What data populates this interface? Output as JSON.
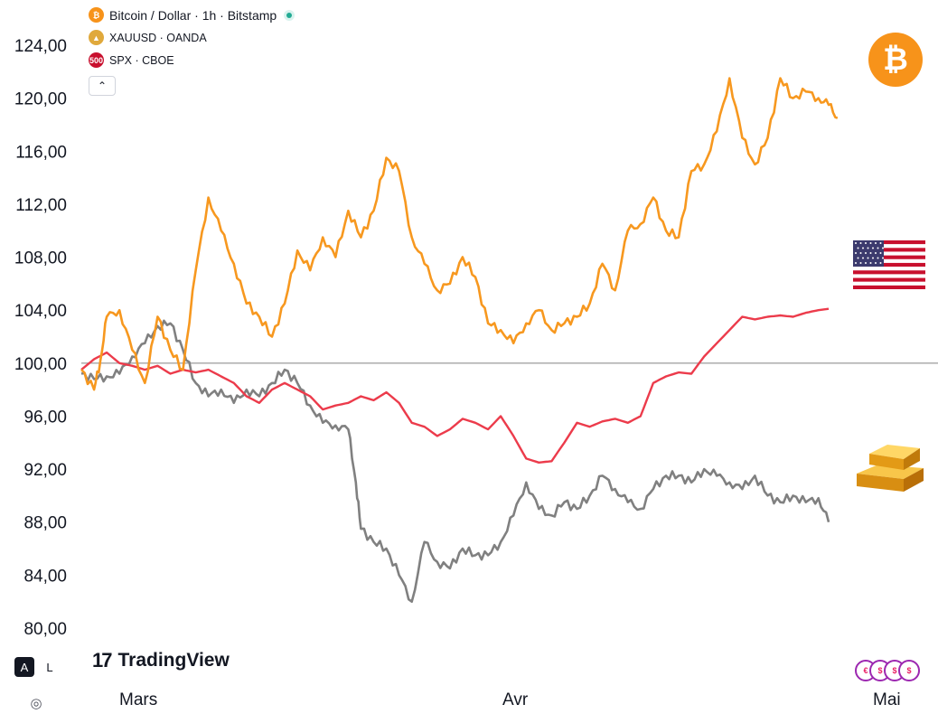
{
  "legend": {
    "items": [
      {
        "label": "Bitcoin / Dollar · 1h · Bitstamp",
        "color": "#f7931a",
        "badge": "₿"
      },
      {
        "label": "XAUUSD · OANDA",
        "color": "#e0a93c",
        "badge": "▲"
      },
      {
        "label": "SPX · CBOE",
        "color": "#c8102e",
        "badge": "500"
      }
    ],
    "collapse_icon": "chevron-up-icon"
  },
  "brand": {
    "logo": "17",
    "name": "TradingView"
  },
  "scale_buttons": {
    "auto": "A",
    "log": "L"
  },
  "colors": {
    "btc": "#f7981f",
    "spx": "#ec3b4b",
    "gold": "#808080",
    "baseline": "#a5a5a5"
  },
  "chart_data": {
    "type": "line",
    "x_ticks": [
      "Mars",
      "Avr",
      "Mai"
    ],
    "y_ticks": [
      "124,00",
      "120,00",
      "116,00",
      "112,00",
      "108,00",
      "104,00",
      "100,00",
      "96,00",
      "92,00",
      "88,00",
      "84,00",
      "80,00"
    ],
    "ylim": [
      79,
      126
    ],
    "baseline": 100,
    "x_range": [
      0,
      62
    ],
    "series": [
      {
        "key": "btc",
        "color": "#f7981f",
        "x": [
          0,
          1,
          1.5,
          2,
          3,
          4,
          5,
          6,
          7,
          8,
          9,
          10,
          11,
          12,
          13,
          14,
          15,
          16,
          17,
          18,
          19,
          20,
          21,
          22,
          23,
          24,
          25,
          26,
          27,
          28,
          29,
          30,
          31,
          32,
          33,
          34,
          35,
          36,
          37,
          38,
          39,
          40,
          41,
          42,
          43,
          44,
          45,
          46,
          47,
          48,
          49,
          50,
          51,
          52,
          53,
          54,
          55,
          56,
          57,
          58,
          58.8,
          59.5
        ],
        "y": [
          99.5,
          98.0,
          100.2,
          103.5,
          104.0,
          101.0,
          98.5,
          103.5,
          101.0,
          99.5,
          107.0,
          112.5,
          110.0,
          107.5,
          104.5,
          103.5,
          102.0,
          104.5,
          108.5,
          107.0,
          109.5,
          108.0,
          111.5,
          109.5,
          111.5,
          115.5,
          114.5,
          109.5,
          107.5,
          105.5,
          106.0,
          108.0,
          106.5,
          103.0,
          102.5,
          101.5,
          103.0,
          104.0,
          102.5,
          103.0,
          103.5,
          104.5,
          107.5,
          105.5,
          110.0,
          110.5,
          112.5,
          110.0,
          109.5,
          114.5,
          115.0,
          117.5,
          121.5,
          117.0,
          115.0,
          117.0,
          121.5,
          120.0,
          120.5,
          120.0,
          119.5,
          118.5
        ]
      },
      {
        "key": "spx",
        "color": "#ec3b4b",
        "x": [
          0,
          1,
          2,
          3,
          4,
          5,
          6,
          7,
          8,
          9,
          10,
          11,
          12,
          13,
          14,
          15,
          16,
          17,
          18,
          19,
          20,
          21,
          22,
          23,
          24,
          25,
          26,
          27,
          28,
          29,
          30,
          31,
          32,
          33,
          34,
          35,
          36,
          37,
          38,
          39,
          40,
          41,
          42,
          43,
          44,
          45,
          46,
          47,
          48,
          49,
          50,
          51,
          52,
          53,
          54,
          55,
          56,
          57,
          58,
          58.8
        ],
        "y": [
          99.5,
          100.3,
          100.8,
          100.0,
          99.8,
          99.5,
          99.8,
          99.2,
          99.5,
          99.3,
          99.5,
          99.0,
          98.5,
          97.5,
          97.0,
          98.0,
          98.5,
          98.0,
          97.5,
          96.5,
          96.8,
          97.0,
          97.5,
          97.2,
          97.8,
          97.0,
          95.5,
          95.2,
          94.5,
          95.0,
          95.8,
          95.5,
          95.0,
          96.0,
          94.5,
          92.8,
          92.5,
          92.6,
          94.0,
          95.5,
          95.2,
          95.6,
          95.8,
          95.5,
          96.0,
          98.5,
          99.0,
          99.3,
          99.2,
          100.5,
          101.5,
          102.5,
          103.5,
          103.3,
          103.5,
          103.6,
          103.5,
          103.8,
          104.0,
          104.1
        ]
      },
      {
        "key": "gold",
        "color": "#808080",
        "x": [
          0,
          1,
          2,
          3,
          4,
          5,
          6,
          7,
          8,
          9,
          10,
          11,
          12,
          13,
          14,
          15,
          16,
          17,
          18,
          19,
          20,
          21,
          21.6,
          22,
          23,
          24,
          25,
          26,
          27,
          28,
          29,
          30,
          31,
          32,
          33,
          34,
          35,
          36,
          37,
          38,
          39,
          40,
          41,
          42,
          43,
          44,
          45,
          46,
          47,
          48,
          49,
          50,
          51,
          52,
          53,
          54,
          55,
          56,
          57,
          58,
          58.8
        ],
        "y": [
          99.2,
          98.8,
          99.0,
          99.2,
          100.5,
          101.5,
          102.8,
          103.0,
          101.0,
          98.5,
          97.5,
          98.0,
          97.0,
          98.0,
          97.5,
          98.5,
          99.5,
          98.5,
          96.8,
          95.5,
          95.3,
          95.0,
          91.0,
          87.5,
          86.5,
          86.0,
          84.0,
          82.0,
          86.5,
          85.0,
          84.5,
          86.0,
          85.5,
          85.5,
          86.5,
          88.5,
          91.0,
          89.0,
          88.5,
          89.5,
          89.0,
          90.0,
          91.5,
          90.5,
          89.5,
          89.0,
          90.5,
          91.5,
          91.5,
          91.0,
          92.0,
          91.5,
          91.0,
          90.5,
          91.5,
          90.0,
          89.5,
          90.0,
          89.5,
          89.8,
          88.0
        ]
      }
    ]
  }
}
